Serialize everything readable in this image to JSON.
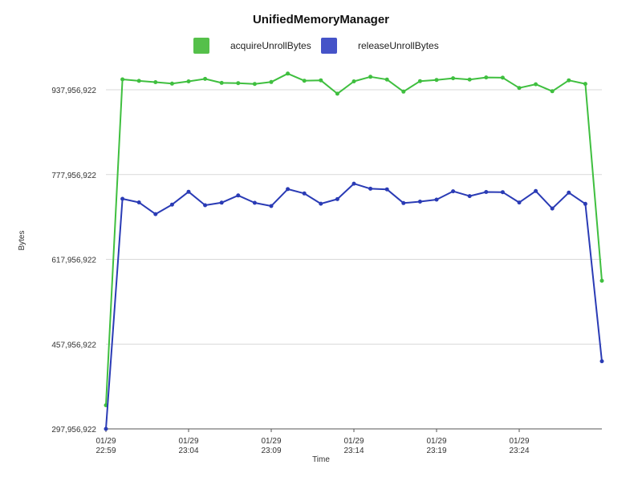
{
  "chart_data": {
    "type": "line",
    "title": "UnifiedMemoryManager",
    "xlabel": "Time",
    "ylabel": "Bytes",
    "ylim": [
      297956922,
      937956922
    ],
    "y_ticks": [
      297956922,
      457956922,
      617956922,
      777956922,
      937956922
    ],
    "y_tick_labels": [
      "297,956,922",
      "457,956,922",
      "617,956,922",
      "777,956,922",
      "937,956,922"
    ],
    "x_ticks": [
      {
        "index": 0,
        "line1": "01/29",
        "line2": "22:59"
      },
      {
        "index": 5,
        "line1": "01/29",
        "line2": "23:04"
      },
      {
        "index": 10,
        "line1": "01/29",
        "line2": "23:09"
      },
      {
        "index": 15,
        "line1": "01/29",
        "line2": "23:14"
      },
      {
        "index": 20,
        "line1": "01/29",
        "line2": "23:19"
      },
      {
        "index": 25,
        "line1": "01/29",
        "line2": "23:24"
      }
    ],
    "grid": true,
    "legend_position": "top",
    "series": [
      {
        "name": "acquireUnrollBytes",
        "color": "#3fbf3f",
        "swatch_color": "#55c04a",
        "values": [
          342600000,
          957700000,
          954700000,
          952300000,
          949600000,
          953900000,
          958600000,
          950900000,
          950500000,
          949000000,
          952700000,
          968500000,
          955000000,
          955800000,
          930600000,
          953900000,
          962400000,
          957300000,
          934500000,
          954300000,
          956600000,
          959800000,
          957300000,
          961200000,
          960800000,
          941500000,
          948400000,
          935300000,
          955800000,
          949200000,
          577600000
        ]
      },
      {
        "name": "releaseUnrollBytes",
        "color": "#2a3bb5",
        "swatch_color": "#4553c8",
        "values": [
          297956922,
          732200000,
          725400000,
          703300000,
          721300000,
          745500000,
          720100000,
          725000000,
          738600000,
          724600000,
          718600000,
          750500000,
          742300000,
          722900000,
          731600000,
          760800000,
          751300000,
          750100000,
          724200000,
          726900000,
          730600000,
          746400000,
          737400000,
          745100000,
          744700000,
          725200000,
          746800000,
          713900000,
          743900000,
          722600000,
          425700000
        ]
      }
    ]
  }
}
